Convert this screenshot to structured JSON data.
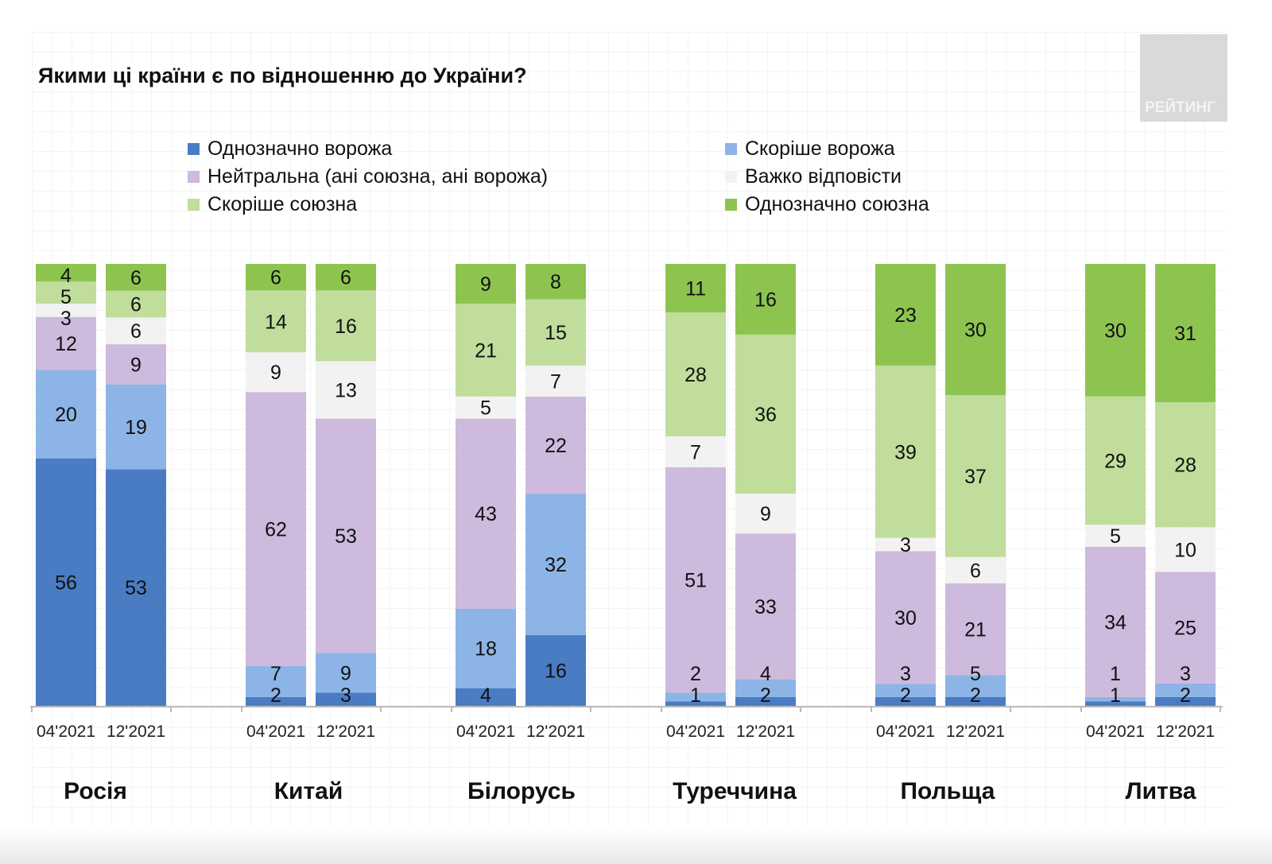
{
  "watermark": "РЕЙТИНГ",
  "chart_data": {
    "type": "bar",
    "stacked": true,
    "title": "Якими ці країни є по відношенню до України?",
    "legend_placement": "top",
    "series": [
      {
        "name": "Однозначно ворожа",
        "color": "#4a7cc4"
      },
      {
        "name": "Скоріше ворожа",
        "color": "#8db4e6"
      },
      {
        "name": "Нейтральна (ані союзна, ані ворожа)",
        "color": "#cdbadd"
      },
      {
        "name": "Важко відповісти",
        "color": "#f2f2f2"
      },
      {
        "name": "Скоріше союзна",
        "color": "#c0dd9c"
      },
      {
        "name": "Однозначно союзна",
        "color": "#8dc450"
      }
    ],
    "groups": [
      {
        "country": "Росія",
        "bars": [
          {
            "label": "04'2021",
            "values": [
              56,
              20,
              12,
              3,
              5,
              4
            ]
          },
          {
            "label": "12'2021",
            "values": [
              53,
              19,
              9,
              6,
              6,
              6
            ]
          }
        ]
      },
      {
        "country": "Китай",
        "bars": [
          {
            "label": "04'2021",
            "values": [
              2,
              7,
              62,
              9,
              14,
              6
            ]
          },
          {
            "label": "12'2021",
            "values": [
              3,
              9,
              53,
              13,
              16,
              6
            ]
          }
        ]
      },
      {
        "country": "Білорусь",
        "bars": [
          {
            "label": "04'2021",
            "values": [
              4,
              18,
              43,
              5,
              21,
              9
            ]
          },
          {
            "label": "12'2021",
            "values": [
              16,
              32,
              22,
              7,
              15,
              8
            ]
          }
        ]
      },
      {
        "country": "Туреччина",
        "bars": [
          {
            "label": "04'2021",
            "values": [
              1,
              2,
              51,
              7,
              28,
              11
            ]
          },
          {
            "label": "12'2021",
            "values": [
              2,
              4,
              33,
              9,
              36,
              16
            ]
          }
        ]
      },
      {
        "country": "Польща",
        "bars": [
          {
            "label": "04'2021",
            "values": [
              2,
              3,
              30,
              3,
              39,
              23
            ]
          },
          {
            "label": "12'2021",
            "values": [
              2,
              5,
              21,
              6,
              37,
              30
            ]
          }
        ]
      },
      {
        "country": "Литва",
        "bars": [
          {
            "label": "04'2021",
            "values": [
              1,
              1,
              34,
              5,
              29,
              30
            ]
          },
          {
            "label": "12'2021",
            "values": [
              2,
              3,
              25,
              10,
              28,
              31
            ]
          }
        ]
      }
    ]
  }
}
